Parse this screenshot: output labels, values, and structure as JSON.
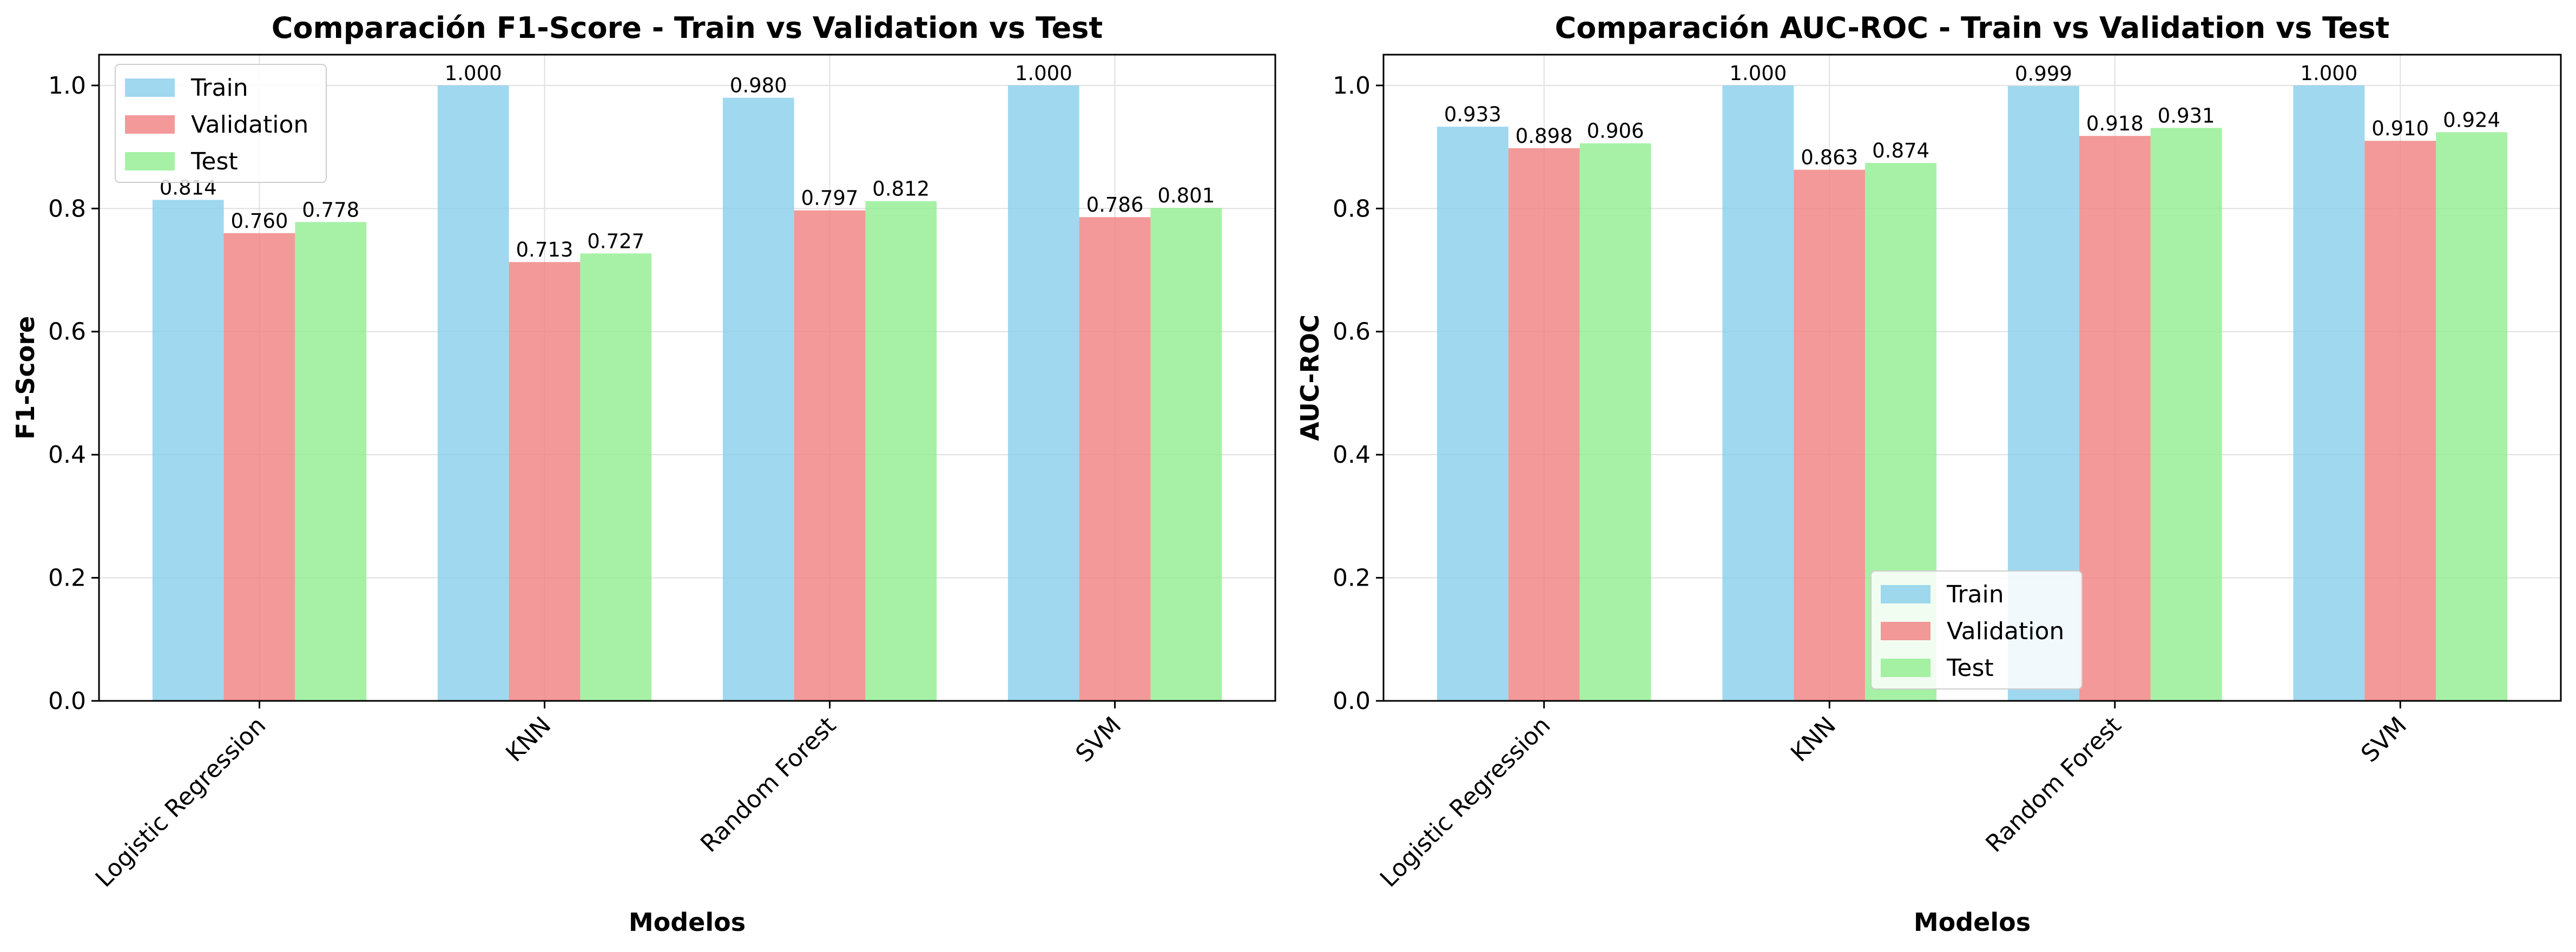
{
  "colors": {
    "train": "#87ceeb",
    "validation": "#f08080",
    "test": "#90ee90",
    "grid": "#e0e0e0",
    "axis": "#000000"
  },
  "chart_data": [
    {
      "type": "bar",
      "title": "Comparación F1-Score - Train vs Validation vs Test",
      "xlabel": "Modelos",
      "ylabel": "F1-Score",
      "ylim": [
        0,
        1.05
      ],
      "yticks": [
        0.0,
        0.2,
        0.4,
        0.6,
        0.8,
        1.0
      ],
      "ytick_labels": [
        "0.0",
        "0.2",
        "0.4",
        "0.6",
        "0.8",
        "1.0"
      ],
      "grid": true,
      "legend_position": "top-left",
      "categories": [
        "Logistic Regression",
        "KNN",
        "Random Forest",
        "SVM"
      ],
      "series": [
        {
          "name": "Train",
          "values": [
            0.814,
            1.0,
            0.98,
            1.0
          ],
          "labels": [
            "0.814",
            "1.000",
            "0.980",
            "1.000"
          ]
        },
        {
          "name": "Validation",
          "values": [
            0.76,
            0.713,
            0.797,
            0.786
          ],
          "labels": [
            "0.760",
            "0.713",
            "0.797",
            "0.786"
          ]
        },
        {
          "name": "Test",
          "values": [
            0.778,
            0.727,
            0.812,
            0.801
          ],
          "labels": [
            "0.778",
            "0.727",
            "0.812",
            "0.801"
          ]
        }
      ]
    },
    {
      "type": "bar",
      "title": "Comparación AUC-ROC - Train vs Validation vs Test",
      "xlabel": "Modelos",
      "ylabel": "AUC-ROC",
      "ylim": [
        0,
        1.05
      ],
      "yticks": [
        0.0,
        0.2,
        0.4,
        0.6,
        0.8,
        1.0
      ],
      "ytick_labels": [
        "0.0",
        "0.2",
        "0.4",
        "0.6",
        "0.8",
        "1.0"
      ],
      "grid": true,
      "legend_position": "bottom-center",
      "categories": [
        "Logistic Regression",
        "KNN",
        "Random Forest",
        "SVM"
      ],
      "series": [
        {
          "name": "Train",
          "values": [
            0.933,
            1.0,
            0.999,
            1.0
          ],
          "labels": [
            "0.933",
            "1.000",
            "0.999",
            "1.000"
          ]
        },
        {
          "name": "Validation",
          "values": [
            0.898,
            0.863,
            0.918,
            0.91
          ],
          "labels": [
            "0.898",
            "0.863",
            "0.918",
            "0.910"
          ]
        },
        {
          "name": "Test",
          "values": [
            0.906,
            0.874,
            0.931,
            0.924
          ],
          "labels": [
            "0.906",
            "0.874",
            "0.931",
            "0.924"
          ]
        }
      ]
    }
  ]
}
